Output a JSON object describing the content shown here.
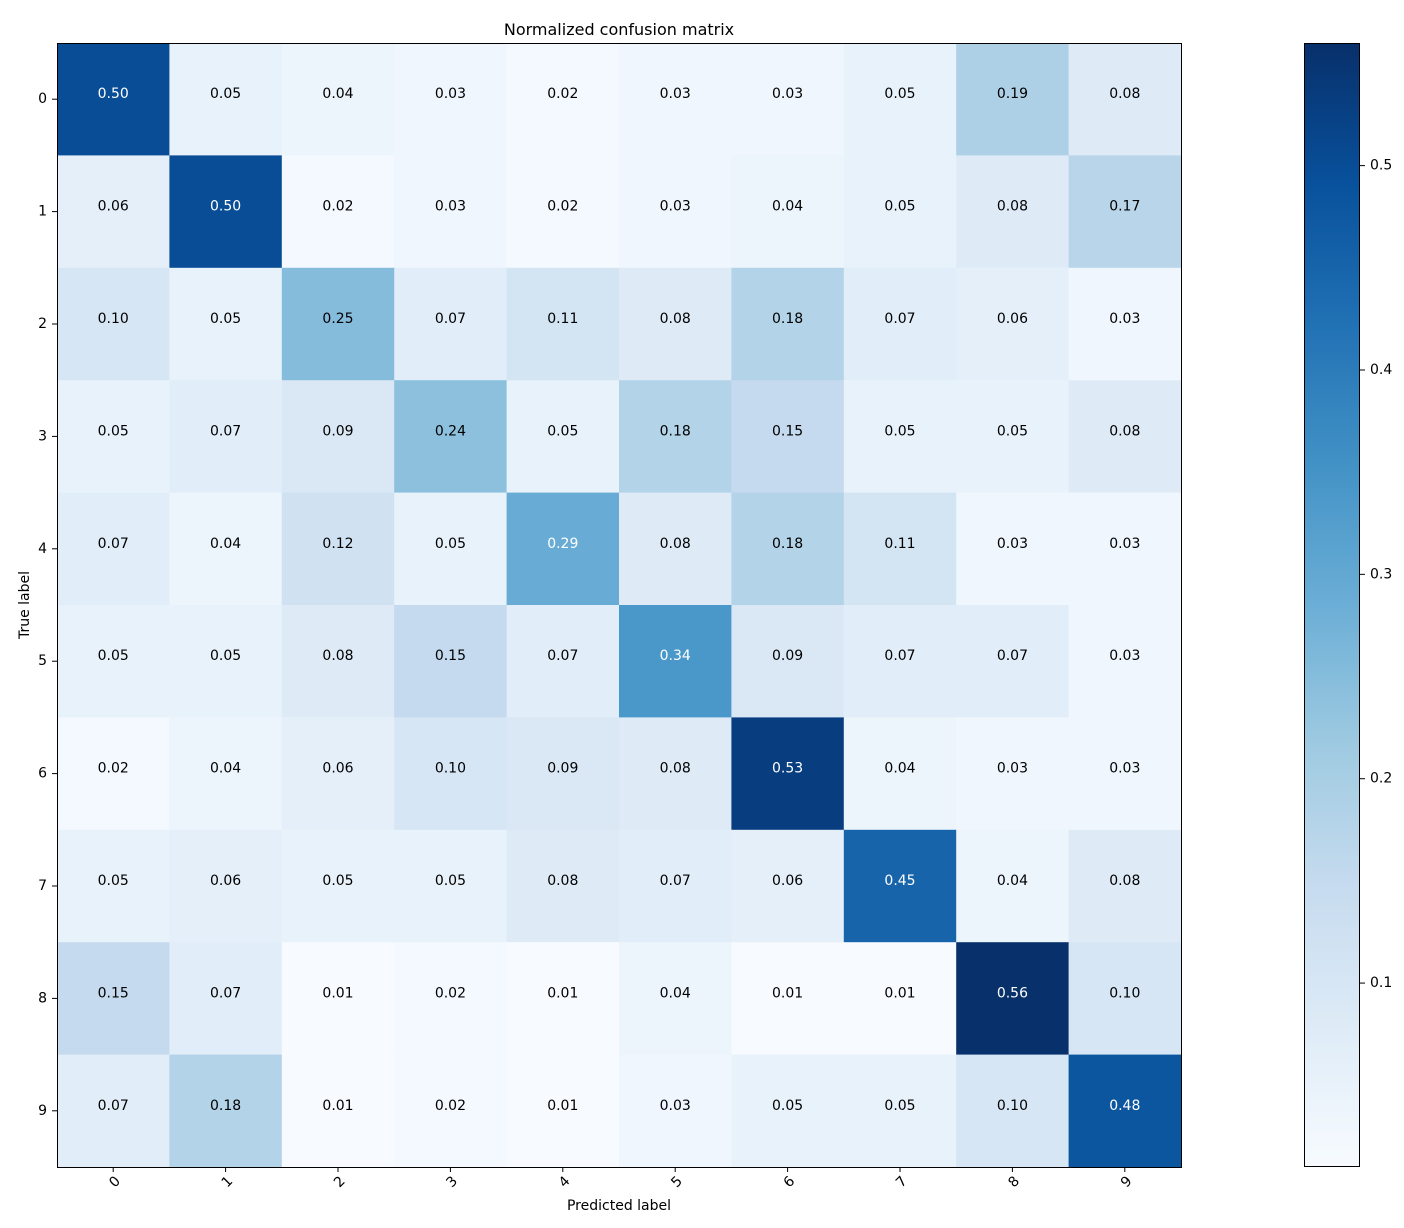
{
  "chart_data": {
    "type": "heatmap",
    "title": "Normalized confusion matrix",
    "xlabel": "Predicted label",
    "ylabel": "True label",
    "x_categories": [
      "0",
      "1",
      "2",
      "3",
      "4",
      "5",
      "6",
      "7",
      "8",
      "9"
    ],
    "y_categories": [
      "0",
      "1",
      "2",
      "3",
      "4",
      "5",
      "6",
      "7",
      "8",
      "9"
    ],
    "values": [
      [
        0.5,
        0.05,
        0.04,
        0.03,
        0.02,
        0.03,
        0.03,
        0.05,
        0.19,
        0.08
      ],
      [
        0.06,
        0.5,
        0.02,
        0.03,
        0.02,
        0.03,
        0.04,
        0.05,
        0.08,
        0.17
      ],
      [
        0.1,
        0.05,
        0.25,
        0.07,
        0.11,
        0.08,
        0.18,
        0.07,
        0.06,
        0.03
      ],
      [
        0.05,
        0.07,
        0.09,
        0.24,
        0.05,
        0.18,
        0.15,
        0.05,
        0.05,
        0.08
      ],
      [
        0.07,
        0.04,
        0.12,
        0.05,
        0.29,
        0.08,
        0.18,
        0.11,
        0.03,
        0.03
      ],
      [
        0.05,
        0.05,
        0.08,
        0.15,
        0.07,
        0.34,
        0.09,
        0.07,
        0.07,
        0.03
      ],
      [
        0.02,
        0.04,
        0.06,
        0.1,
        0.09,
        0.08,
        0.53,
        0.04,
        0.03,
        0.03
      ],
      [
        0.05,
        0.06,
        0.05,
        0.05,
        0.08,
        0.07,
        0.06,
        0.45,
        0.04,
        0.08
      ],
      [
        0.15,
        0.07,
        0.01,
        0.02,
        0.01,
        0.04,
        0.01,
        0.01,
        0.56,
        0.1
      ],
      [
        0.07,
        0.18,
        0.01,
        0.02,
        0.01,
        0.03,
        0.05,
        0.05,
        0.1,
        0.48
      ]
    ],
    "value_labels": [
      [
        "0.50",
        "0.05",
        "0.04",
        "0.03",
        "0.02",
        "0.03",
        "0.03",
        "0.05",
        "0.19",
        "0.08"
      ],
      [
        "0.06",
        "0.50",
        "0.02",
        "0.03",
        "0.02",
        "0.03",
        "0.04",
        "0.05",
        "0.08",
        "0.17"
      ],
      [
        "0.10",
        "0.05",
        "0.25",
        "0.07",
        "0.11",
        "0.08",
        "0.18",
        "0.07",
        "0.06",
        "0.03"
      ],
      [
        "0.05",
        "0.07",
        "0.09",
        "0.24",
        "0.05",
        "0.18",
        "0.15",
        "0.05",
        "0.05",
        "0.08"
      ],
      [
        "0.07",
        "0.04",
        "0.12",
        "0.05",
        "0.29",
        "0.08",
        "0.18",
        "0.11",
        "0.03",
        "0.03"
      ],
      [
        "0.05",
        "0.05",
        "0.08",
        "0.15",
        "0.07",
        "0.34",
        "0.09",
        "0.07",
        "0.07",
        "0.03"
      ],
      [
        "0.02",
        "0.04",
        "0.06",
        "0.10",
        "0.09",
        "0.08",
        "0.53",
        "0.04",
        "0.03",
        "0.03"
      ],
      [
        "0.05",
        "0.06",
        "0.05",
        "0.05",
        "0.08",
        "0.07",
        "0.06",
        "0.45",
        "0.04",
        "0.08"
      ],
      [
        "0.15",
        "0.07",
        "0.01",
        "0.02",
        "0.01",
        "0.04",
        "0.01",
        "0.01",
        "0.56",
        "0.10"
      ],
      [
        "0.07",
        "0.18",
        "0.01",
        "0.02",
        "0.01",
        "0.03",
        "0.05",
        "0.05",
        "0.10",
        "0.48"
      ]
    ],
    "colormap": "Blues",
    "colormap_stops": [
      "#f7fbff",
      "#deebf7",
      "#c6dbef",
      "#9ecae1",
      "#6baed6",
      "#4292c6",
      "#2171b5",
      "#08519c",
      "#08306b"
    ],
    "value_range": [
      0.01,
      0.56
    ],
    "text_threshold": 0.28,
    "text_color_light": "#ffffff",
    "text_color_dark": "#000000",
    "colorbar": {
      "ticks": [
        0.1,
        0.2,
        0.3,
        0.4,
        0.5
      ],
      "tick_labels": [
        "0.1",
        "0.2",
        "0.3",
        "0.4",
        "0.5"
      ],
      "range": [
        0.01,
        0.56
      ]
    }
  }
}
